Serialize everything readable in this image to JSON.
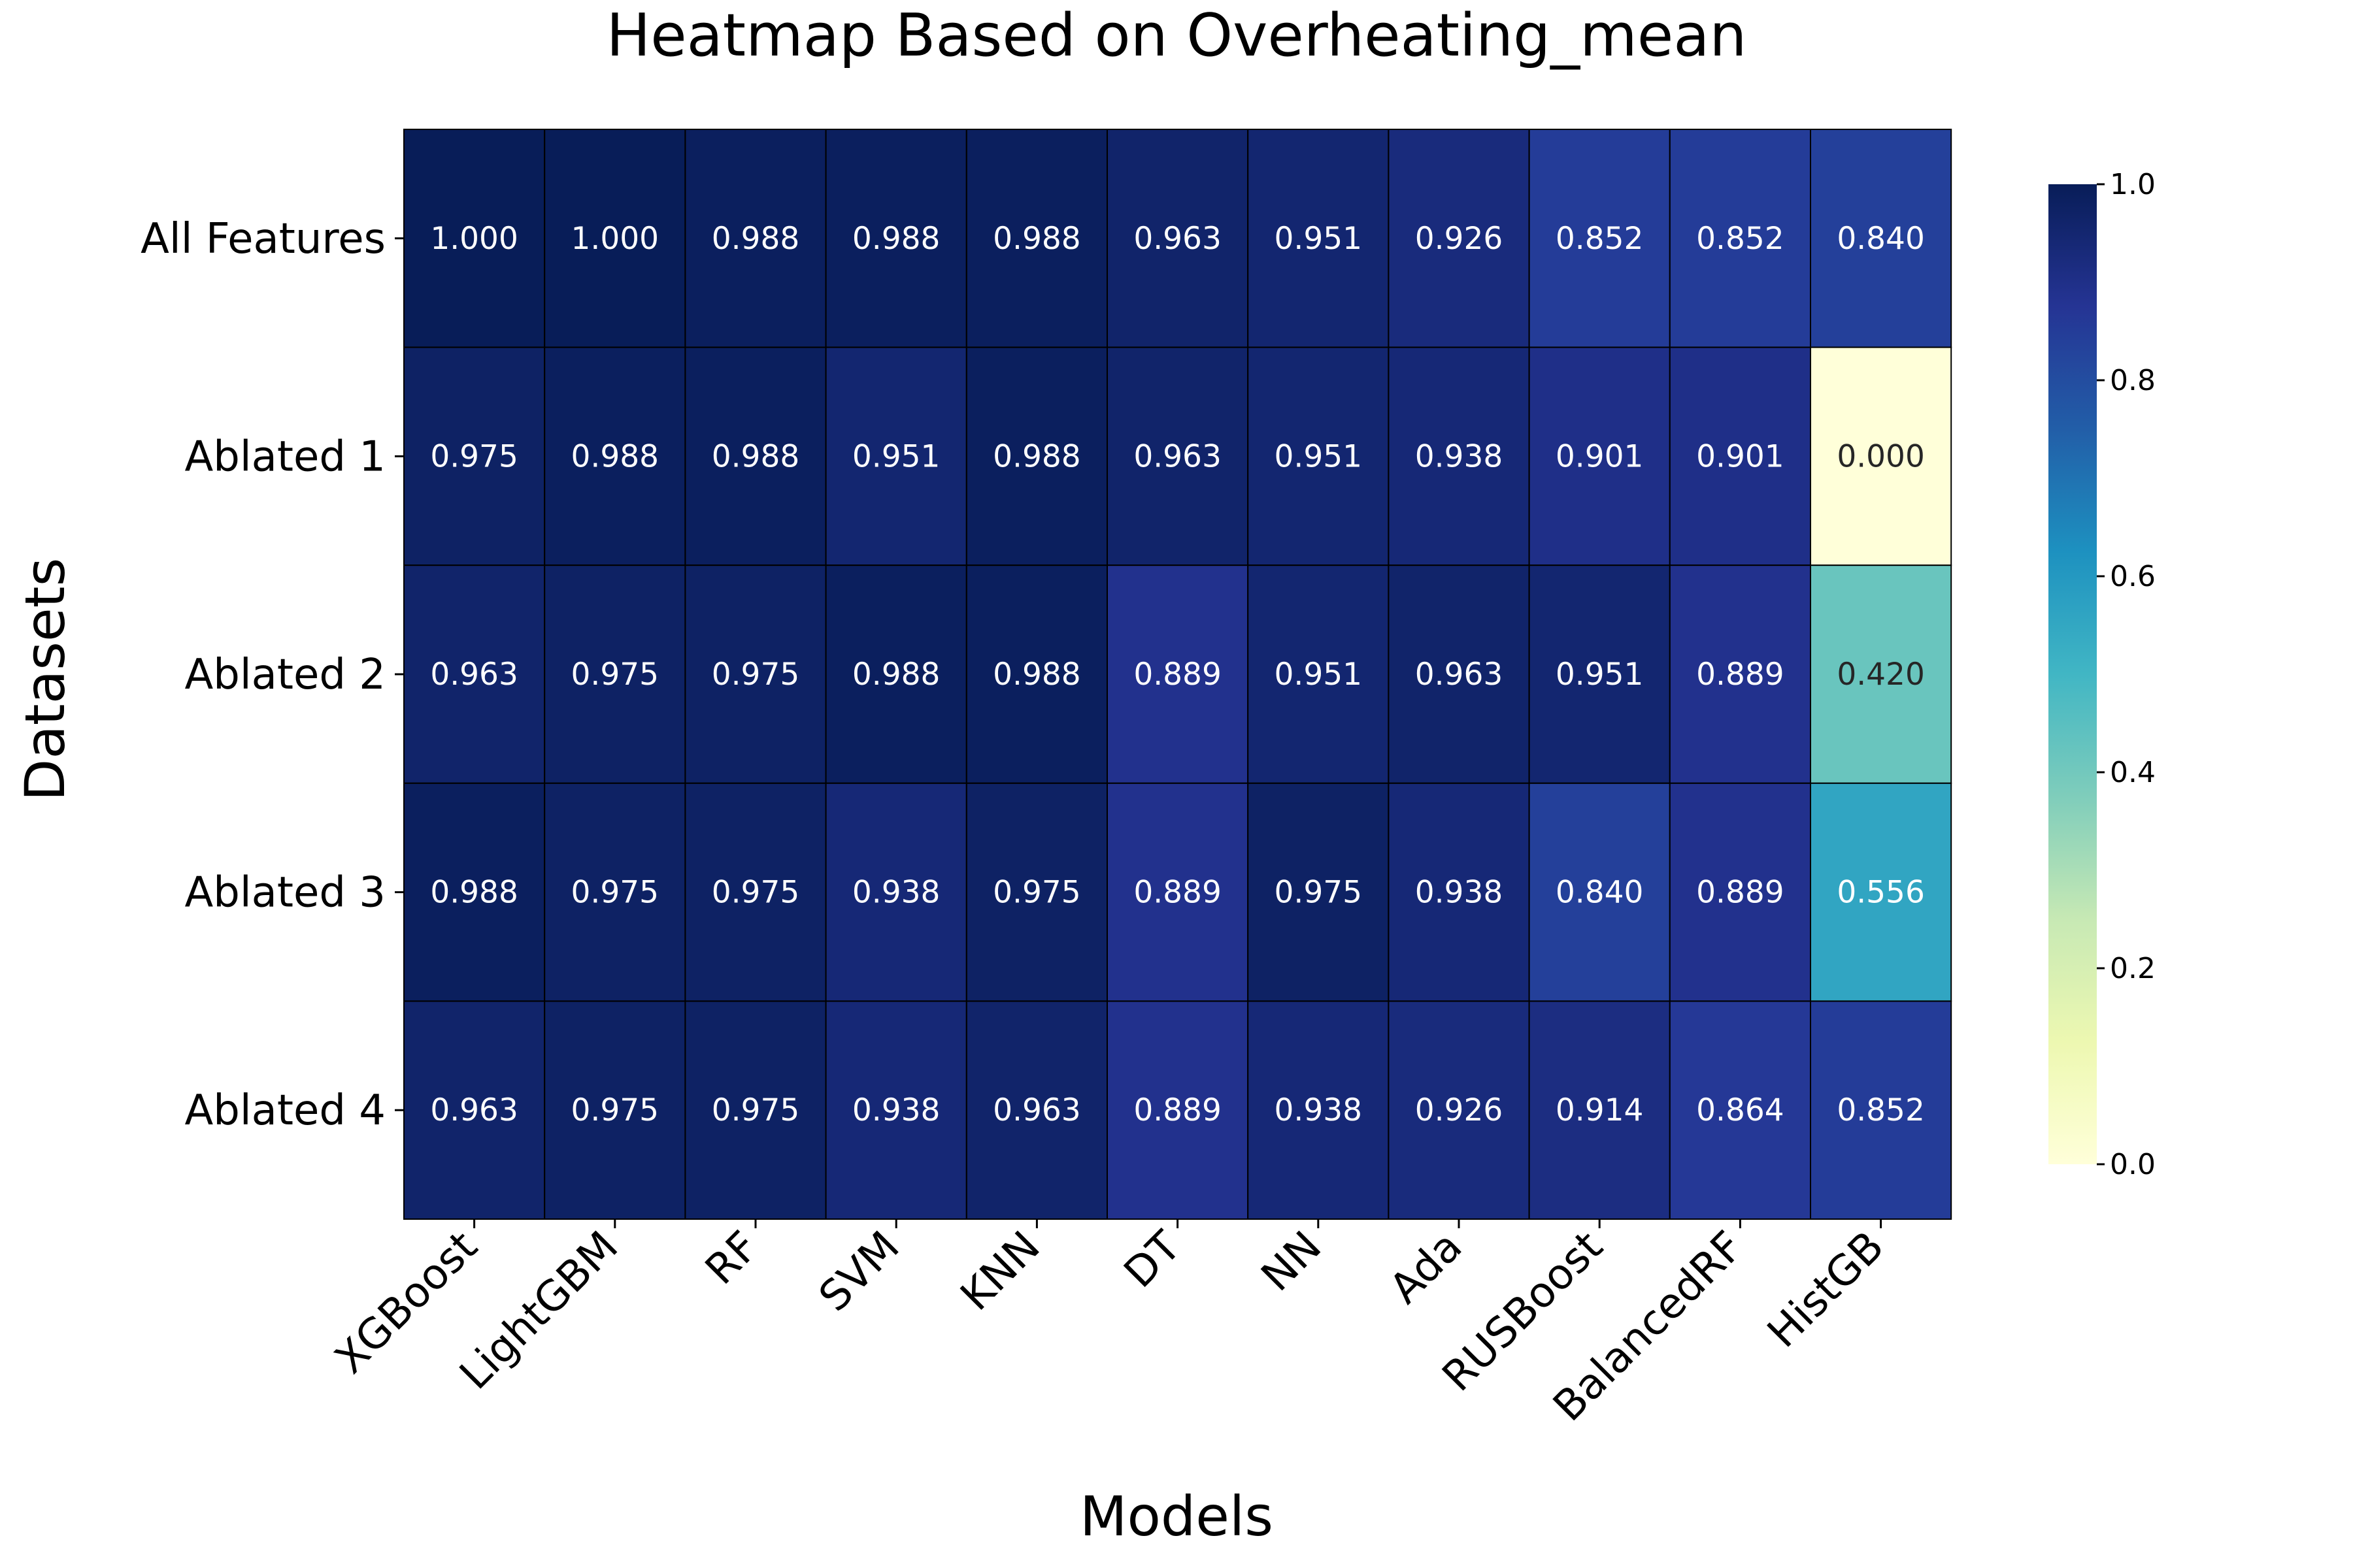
{
  "chart_data": {
    "type": "heatmap",
    "title": "Heatmap Based on Overheating_mean",
    "xlabel": "Models",
    "ylabel": "Datasets",
    "columns": [
      "XGBoost",
      "LightGBM",
      "RF",
      "SVM",
      "KNN",
      "DT",
      "NN",
      "Ada",
      "RUSBoost",
      "BalancedRF",
      "HistGB"
    ],
    "rows": [
      "All Features",
      "Ablated 1",
      "Ablated 2",
      "Ablated 3",
      "Ablated 4"
    ],
    "values": [
      [
        1.0,
        1.0,
        0.988,
        0.988,
        0.988,
        0.963,
        0.951,
        0.926,
        0.852,
        0.852,
        0.84
      ],
      [
        0.975,
        0.988,
        0.988,
        0.951,
        0.988,
        0.963,
        0.951,
        0.938,
        0.901,
        0.901,
        0.0
      ],
      [
        0.963,
        0.975,
        0.975,
        0.988,
        0.988,
        0.889,
        0.951,
        0.963,
        0.951,
        0.889,
        0.42
      ],
      [
        0.988,
        0.975,
        0.975,
        0.938,
        0.975,
        0.889,
        0.975,
        0.938,
        0.84,
        0.889,
        0.556
      ],
      [
        0.963,
        0.975,
        0.975,
        0.938,
        0.963,
        0.889,
        0.938,
        0.926,
        0.914,
        0.864,
        0.852
      ]
    ],
    "value_format": "3 decimals",
    "vmin": 0.0,
    "vmax": 1.0,
    "colormap": "YlGnBu",
    "colorbar": {
      "ticks": [
        0.0,
        0.2,
        0.4,
        0.6,
        0.8,
        1.0
      ],
      "tick_labels": [
        "0.0",
        "0.2",
        "0.4",
        "0.6",
        "0.8",
        "1.0"
      ]
    },
    "cell_border_color": "#000000",
    "x_tick_rotation": 45
  }
}
